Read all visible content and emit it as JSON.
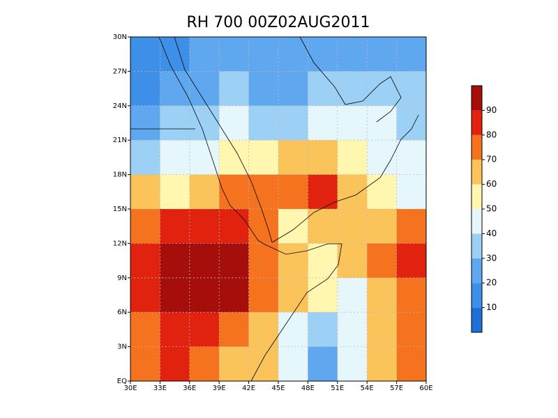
{
  "chart_data": {
    "type": "heatmap",
    "title": "RH 700 00Z02AUG2011",
    "xlim": [
      30,
      60
    ],
    "ylim": [
      0,
      30
    ],
    "xticks": [
      {
        "value": 30,
        "label": "30E"
      },
      {
        "value": 33,
        "label": "33E"
      },
      {
        "value": 36,
        "label": "36E"
      },
      {
        "value": 39,
        "label": "39E"
      },
      {
        "value": 42,
        "label": "42E"
      },
      {
        "value": 45,
        "label": "45E"
      },
      {
        "value": 48,
        "label": "48E"
      },
      {
        "value": 51,
        "label": "51E"
      },
      {
        "value": 54,
        "label": "54E"
      },
      {
        "value": 57,
        "label": "57E"
      },
      {
        "value": 60,
        "label": "60E"
      }
    ],
    "yticks": [
      {
        "value": 0,
        "label": "EQ"
      },
      {
        "value": 3,
        "label": "3N"
      },
      {
        "value": 6,
        "label": "6N"
      },
      {
        "value": 9,
        "label": "9N"
      },
      {
        "value": 12,
        "label": "12N"
      },
      {
        "value": 15,
        "label": "15N"
      },
      {
        "value": 18,
        "label": "18N"
      },
      {
        "value": 21,
        "label": "21N"
      },
      {
        "value": 24,
        "label": "24N"
      },
      {
        "value": 27,
        "label": "27N"
      },
      {
        "value": 30,
        "label": "30N"
      }
    ],
    "grid": true,
    "values": [
      [
        10,
        15,
        20,
        25,
        25,
        25,
        25,
        25,
        25,
        25
      ],
      [
        15,
        20,
        25,
        30,
        25,
        25,
        30,
        35,
        35,
        30
      ],
      [
        25,
        30,
        35,
        40,
        35,
        35,
        40,
        45,
        45,
        35
      ],
      [
        35,
        40,
        45,
        50,
        55,
        60,
        60,
        50,
        45,
        40
      ],
      [
        60,
        55,
        65,
        70,
        70,
        75,
        85,
        60,
        50,
        45
      ],
      [
        75,
        80,
        80,
        85,
        75,
        55,
        60,
        60,
        65,
        75
      ],
      [
        85,
        95,
        95,
        90,
        75,
        65,
        55,
        65,
        75,
        80
      ],
      [
        80,
        95,
        95,
        90,
        70,
        60,
        50,
        40,
        60,
        75
      ],
      [
        75,
        85,
        80,
        70,
        65,
        45,
        30,
        40,
        60,
        75
      ],
      [
        70,
        80,
        75,
        65,
        60,
        40,
        25,
        45,
        65,
        75
      ]
    ],
    "colorbar": {
      "levels": [
        10,
        20,
        30,
        40,
        50,
        60,
        70,
        80,
        90
      ],
      "colors": [
        "#1f6fd9",
        "#3d8fe8",
        "#5fa8f0",
        "#9cd0f5",
        "#e6f7fb",
        "#fff6b0",
        "#fbc45b",
        "#f5721f",
        "#e0220f",
        "#a50e0a"
      ]
    }
  }
}
